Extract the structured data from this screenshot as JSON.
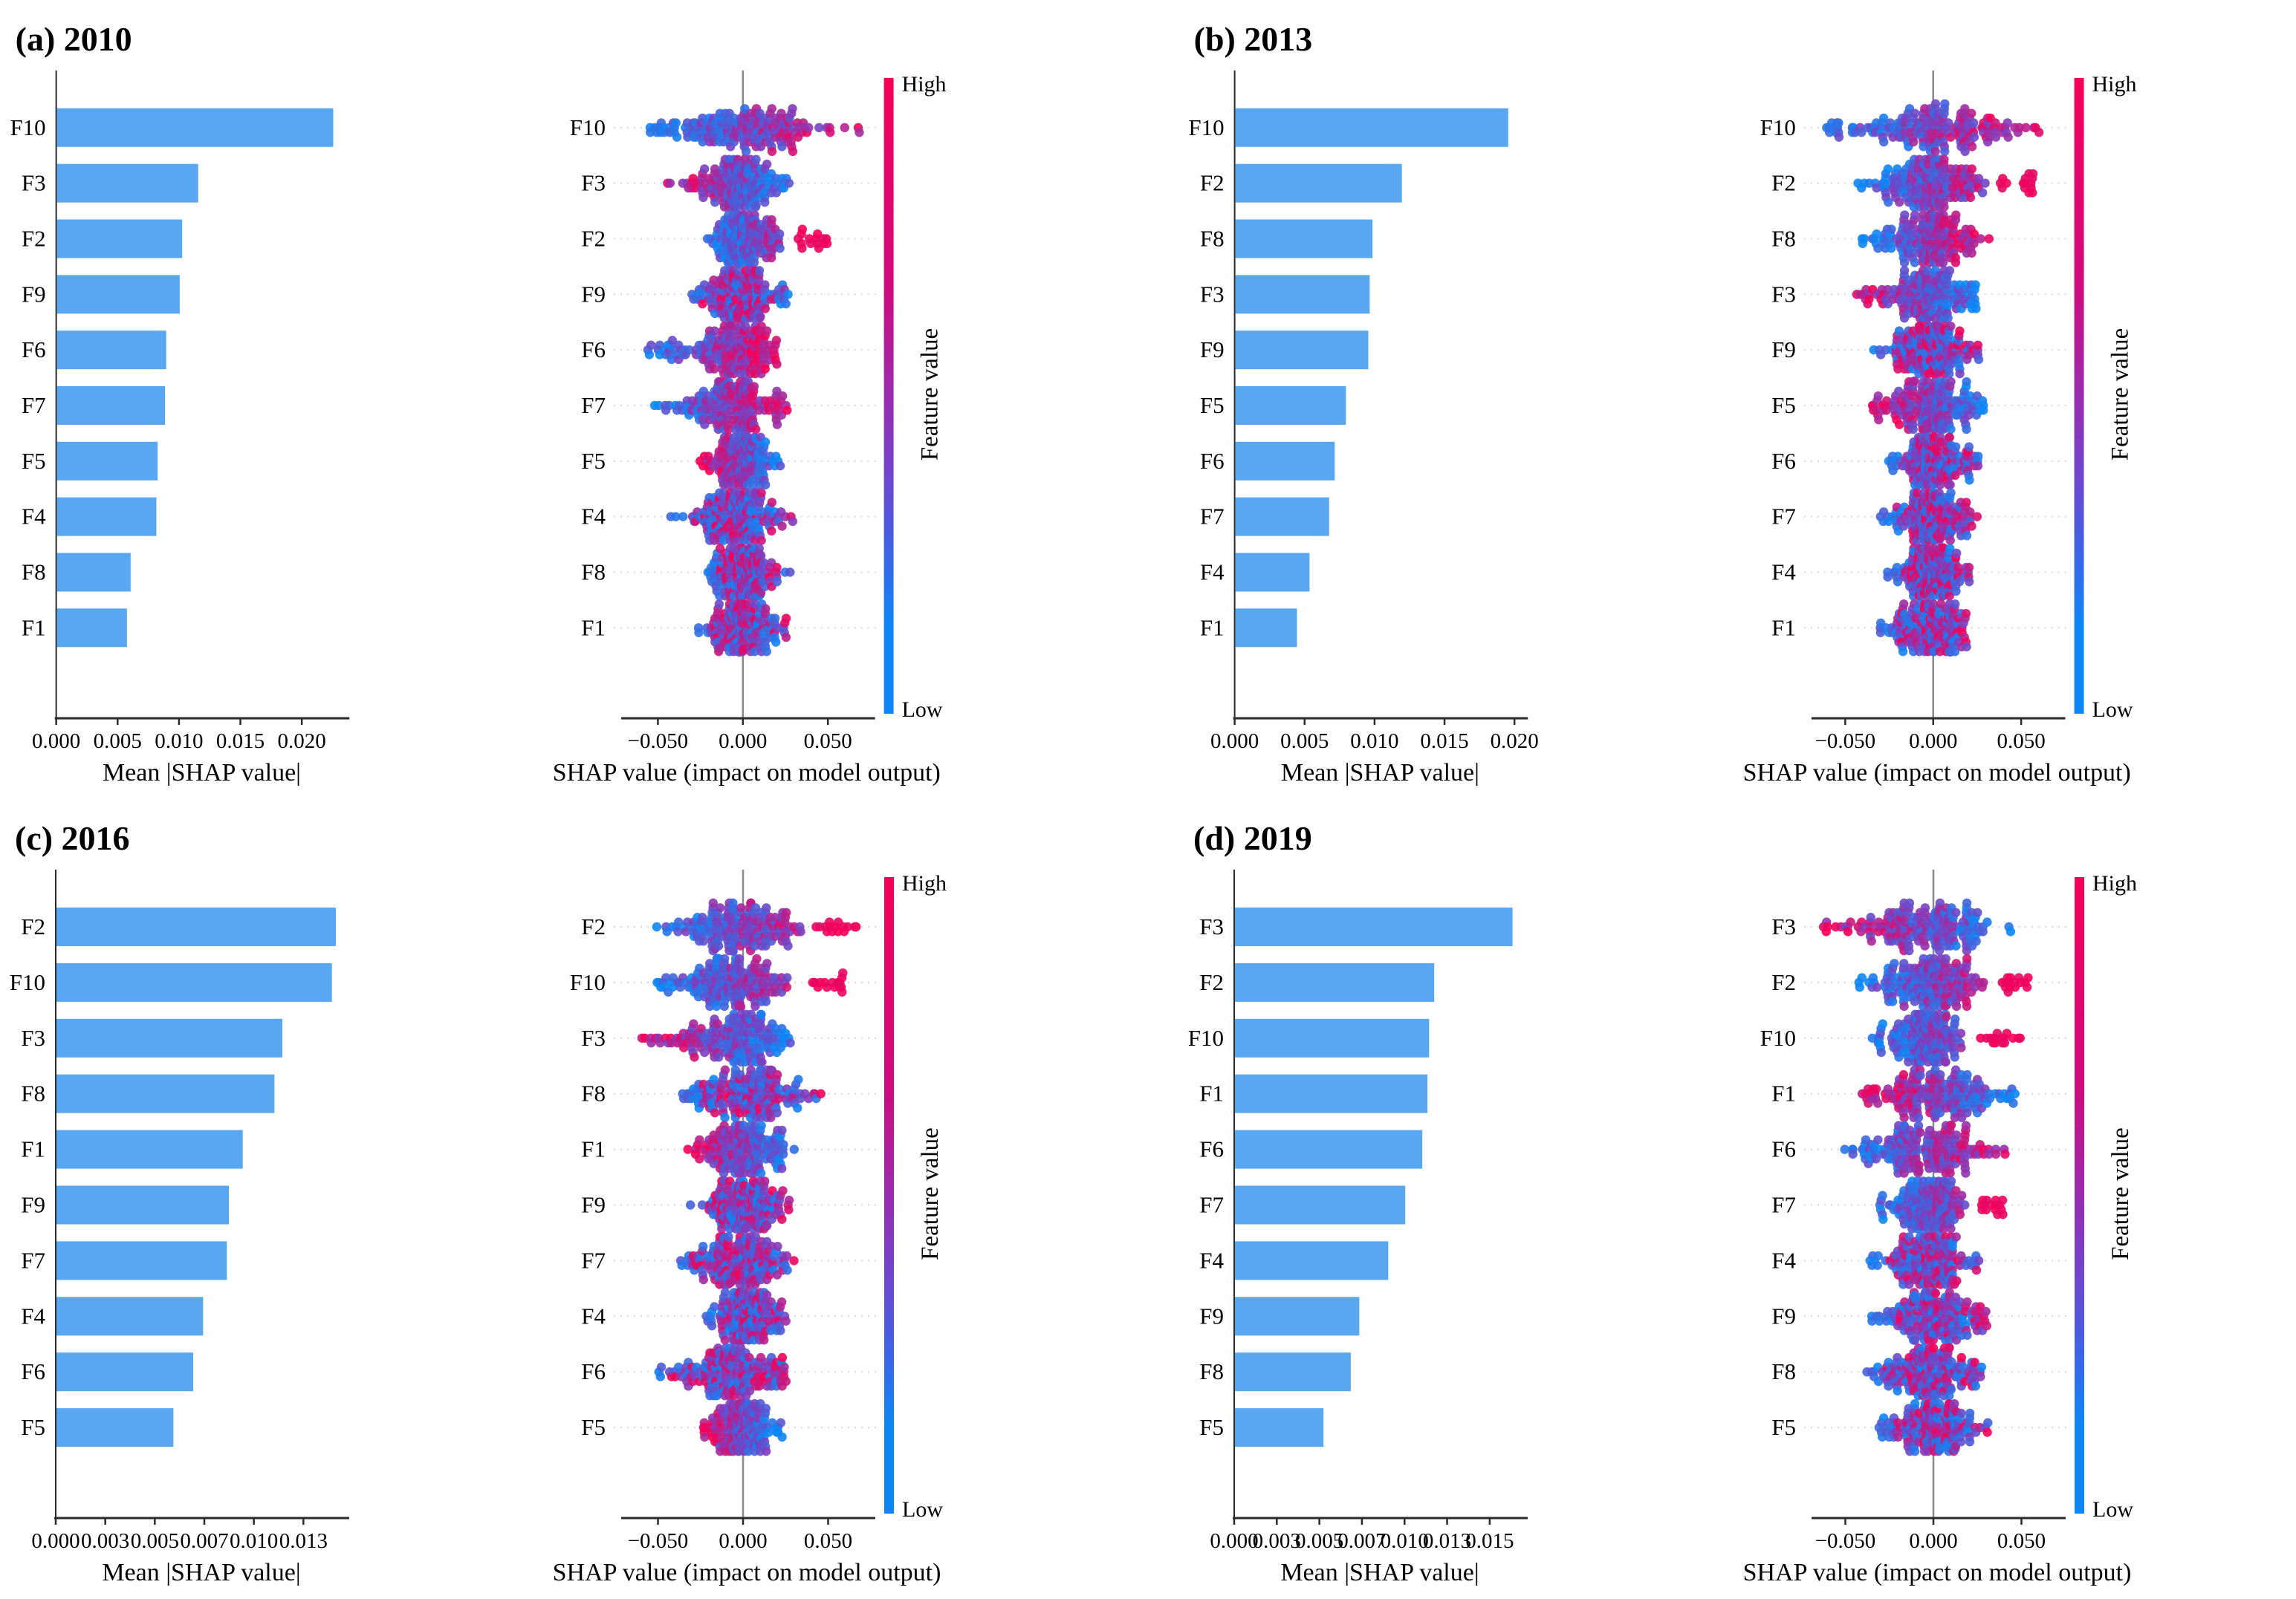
{
  "figure_title": "SHAP feature importance by year",
  "colors": {
    "bar_fill": "#58a7f0",
    "dot_low": "#0d86f5",
    "dot_mid": "#7b3fc1",
    "dot_high": "#f50057",
    "axis": "#2b2b2b",
    "zero_line": "#8a8a8a",
    "gridline": "#d8d8d8",
    "text": "#000000"
  },
  "chart_data": [
    {
      "panel": "a",
      "title": "(a) 2010",
      "bar": {
        "type": "bar",
        "categories": [
          "F10",
          "F3",
          "F2",
          "F9",
          "F6",
          "F7",
          "F5",
          "F4",
          "F8",
          "F1"
        ],
        "values": [
          0.0225,
          0.0115,
          0.0102,
          0.01,
          0.0089,
          0.0088,
          0.0082,
          0.0081,
          0.006,
          0.0057
        ],
        "xlabel": "Mean |SHAP value|",
        "xtick_labels": [
          "0.000",
          "0.005",
          "0.010",
          "0.015",
          "0.020"
        ],
        "xtick_values": [
          0,
          0.005,
          0.01,
          0.015,
          0.02
        ],
        "xlim": [
          0,
          0.0237
        ],
        "grid": false
      },
      "beeswarm": {
        "type": "scatter",
        "xlabel": "SHAP value (impact on model output)",
        "xtick_labels": [
          "−0.050",
          "0.000",
          "0.050"
        ],
        "xtick_values": [
          -0.05,
          0,
          0.05
        ],
        "xlim": [
          -0.072,
          0.078
        ],
        "rows": [
          {
            "feature": "F10",
            "range": [
              -0.056,
              0.072
            ],
            "trend": "high-right"
          },
          {
            "feature": "F3",
            "range": [
              -0.046,
              0.028
            ],
            "trend": "high-left"
          },
          {
            "feature": "F2",
            "range": [
              -0.021,
              0.051
            ],
            "trend": "high-right",
            "red_cluster": [
              0.032,
              0.051
            ]
          },
          {
            "feature": "F9",
            "range": [
              -0.036,
              0.028
            ],
            "trend": "mixed"
          },
          {
            "feature": "F6",
            "range": [
              -0.058,
              0.021
            ],
            "trend": "high-right"
          },
          {
            "feature": "F7",
            "range": [
              -0.053,
              0.026
            ],
            "trend": "high-right"
          },
          {
            "feature": "F5",
            "range": [
              -0.026,
              0.022
            ],
            "trend": "high-left"
          },
          {
            "feature": "F4",
            "range": [
              -0.043,
              0.03
            ],
            "trend": "mixed"
          },
          {
            "feature": "F8",
            "range": [
              -0.021,
              0.028
            ],
            "trend": "mixed"
          },
          {
            "feature": "F1",
            "range": [
              -0.028,
              0.026
            ],
            "trend": "mixed"
          }
        ]
      },
      "colorbar": {
        "top": "High",
        "bottom": "Low",
        "label": "Feature value"
      }
    },
    {
      "panel": "b",
      "title": "(b) 2013",
      "bar": {
        "type": "bar",
        "categories": [
          "F10",
          "F2",
          "F8",
          "F3",
          "F9",
          "F5",
          "F6",
          "F7",
          "F4",
          "F1"
        ],
        "values": [
          0.0195,
          0.0119,
          0.0098,
          0.0096,
          0.0095,
          0.0079,
          0.0071,
          0.0067,
          0.0053,
          0.0044
        ],
        "xlabel": "Mean |SHAP value|",
        "xtick_labels": [
          "0.000",
          "0.005",
          "0.010",
          "0.015",
          "0.020"
        ],
        "xtick_values": [
          0,
          0.005,
          0.01,
          0.015,
          0.02
        ],
        "xlim": [
          0,
          0.0208
        ],
        "grid": false
      },
      "beeswarm": {
        "type": "scatter",
        "xlabel": "SHAP value (impact on model output)",
        "xtick_labels": [
          "−0.050",
          "0.000",
          "0.050"
        ],
        "xtick_values": [
          -0.05,
          0,
          0.05
        ],
        "xlim": [
          -0.072,
          0.078
        ],
        "rows": [
          {
            "feature": "F10",
            "range": [
              -0.061,
              0.063
            ],
            "trend": "high-right"
          },
          {
            "feature": "F2",
            "range": [
              -0.046,
              0.057
            ],
            "trend": "high-right",
            "red_cluster": [
              0.038,
              0.057
            ]
          },
          {
            "feature": "F8",
            "range": [
              -0.041,
              0.033
            ],
            "trend": "high-right"
          },
          {
            "feature": "F3",
            "range": [
              -0.048,
              0.026
            ],
            "trend": "high-left"
          },
          {
            "feature": "F9",
            "range": [
              -0.036,
              0.026
            ],
            "trend": "mixed"
          },
          {
            "feature": "F5",
            "range": [
              -0.036,
              0.031
            ],
            "trend": "high-left"
          },
          {
            "feature": "F6",
            "range": [
              -0.026,
              0.026
            ],
            "trend": "mixed"
          },
          {
            "feature": "F7",
            "range": [
              -0.031,
              0.026
            ],
            "trend": "mixed"
          },
          {
            "feature": "F4",
            "range": [
              -0.026,
              0.021
            ],
            "trend": "mixed"
          },
          {
            "feature": "F1",
            "range": [
              -0.031,
              0.019
            ],
            "trend": "mixed"
          }
        ]
      },
      "colorbar": {
        "top": "High",
        "bottom": "Low",
        "label": "Feature value"
      }
    },
    {
      "panel": "c",
      "title": "(c) 2016",
      "bar": {
        "type": "bar",
        "categories": [
          "F2",
          "F10",
          "F3",
          "F8",
          "F1",
          "F9",
          "F7",
          "F4",
          "F6",
          "F5"
        ],
        "values": [
          0.0141,
          0.0139,
          0.0114,
          0.011,
          0.0094,
          0.0087,
          0.0086,
          0.0074,
          0.0069,
          0.0059
        ],
        "xlabel": "Mean |SHAP value|",
        "xtick_labels": [
          "0.000",
          "0.003",
          "0.005",
          "0.007",
          "0.010",
          "0.013"
        ],
        "xtick_values": [
          0,
          0.0025,
          0.005,
          0.0075,
          0.01,
          0.0125
        ],
        "xlim": [
          0,
          0.0147
        ],
        "grid": false
      },
      "beeswarm": {
        "type": "scatter",
        "xlabel": "SHAP value (impact on model output)",
        "xtick_labels": [
          "−0.050",
          "0.000",
          "0.050"
        ],
        "xtick_values": [
          -0.05,
          0,
          0.05
        ],
        "xlim": [
          -0.072,
          0.078
        ],
        "rows": [
          {
            "feature": "F2",
            "range": [
              -0.056,
              0.068
            ],
            "trend": "high-right",
            "red_cluster": [
              0.042,
              0.068
            ]
          },
          {
            "feature": "F10",
            "range": [
              -0.051,
              0.061
            ],
            "trend": "high-right",
            "red_cluster": [
              0.036,
              0.06
            ]
          },
          {
            "feature": "F3",
            "range": [
              -0.061,
              0.028
            ],
            "trend": "high-left"
          },
          {
            "feature": "F8",
            "range": [
              -0.036,
              0.046
            ],
            "trend": "mixed"
          },
          {
            "feature": "F1",
            "range": [
              -0.036,
              0.031
            ],
            "trend": "high-left"
          },
          {
            "feature": "F9",
            "range": [
              -0.031,
              0.031
            ],
            "trend": "mixed"
          },
          {
            "feature": "F7",
            "range": [
              -0.041,
              0.031
            ],
            "trend": "mixed"
          },
          {
            "feature": "F4",
            "range": [
              -0.023,
              0.026
            ],
            "trend": "mixed"
          },
          {
            "feature": "F6",
            "range": [
              -0.056,
              0.026
            ],
            "trend": "mixed"
          },
          {
            "feature": "F5",
            "range": [
              -0.029,
              0.023
            ],
            "trend": "high-left"
          }
        ]
      },
      "colorbar": {
        "top": "High",
        "bottom": "Low",
        "label": "Feature value"
      }
    },
    {
      "panel": "d",
      "title": "(d) 2019",
      "bar": {
        "type": "bar",
        "categories": [
          "F3",
          "F2",
          "F10",
          "F1",
          "F6",
          "F7",
          "F4",
          "F9",
          "F8",
          "F5"
        ],
        "values": [
          0.0163,
          0.0117,
          0.0114,
          0.0113,
          0.011,
          0.01,
          0.009,
          0.0073,
          0.0068,
          0.0052
        ],
        "xlabel": "Mean |SHAP value|",
        "xtick_labels": [
          "0.000",
          "0.003",
          "0.005",
          "0.007",
          "0.010",
          "0.013",
          "0.015"
        ],
        "xtick_values": [
          0,
          0.0025,
          0.005,
          0.0075,
          0.01,
          0.0125,
          0.015
        ],
        "xlim": [
          0,
          0.0171
        ],
        "grid": false
      },
      "beeswarm": {
        "type": "scatter",
        "xlabel": "SHAP value (impact on model output)",
        "xtick_labels": [
          "−0.050",
          "0.000",
          "0.050"
        ],
        "xtick_values": [
          -0.05,
          0,
          0.05
        ],
        "xlim": [
          -0.072,
          0.078
        ],
        "rows": [
          {
            "feature": "F3",
            "range": [
              -0.066,
              0.046
            ],
            "trend": "high-left"
          },
          {
            "feature": "F2",
            "range": [
              -0.046,
              0.056
            ],
            "trend": "high-right",
            "red_cluster": [
              0.038,
              0.056
            ]
          },
          {
            "feature": "F10",
            "range": [
              -0.036,
              0.056
            ],
            "trend": "high-right",
            "red_cluster": [
              0.024,
              0.05
            ]
          },
          {
            "feature": "F1",
            "range": [
              -0.041,
              0.049
            ],
            "trend": "high-left"
          },
          {
            "feature": "F6",
            "range": [
              -0.051,
              0.041
            ],
            "trend": "high-right"
          },
          {
            "feature": "F7",
            "range": [
              -0.031,
              0.046
            ],
            "trend": "high-right",
            "red_cluster": [
              0.026,
              0.04
            ]
          },
          {
            "feature": "F4",
            "range": [
              -0.036,
              0.026
            ],
            "trend": "mixed"
          },
          {
            "feature": "F9",
            "range": [
              -0.036,
              0.031
            ],
            "trend": "mixed"
          },
          {
            "feature": "F8",
            "range": [
              -0.041,
              0.031
            ],
            "trend": "mixed"
          },
          {
            "feature": "F5",
            "range": [
              -0.031,
              0.031
            ],
            "trend": "mixed"
          }
        ]
      },
      "colorbar": {
        "top": "High",
        "bottom": "Low",
        "label": "Feature value"
      }
    }
  ]
}
